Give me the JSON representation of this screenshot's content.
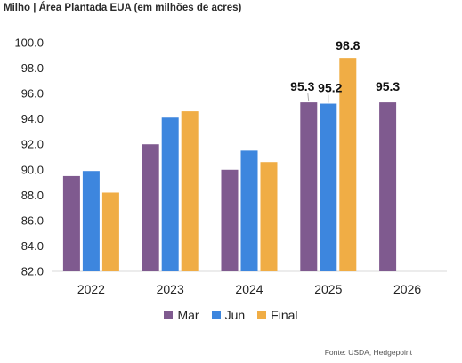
{
  "title": "Milho | Área Plantada EUA (em milhões de acres)",
  "source": "Fonte: USDA, Hedgepoint",
  "chart_data": {
    "type": "bar",
    "title": "Milho | Área Plantada EUA (em milhões de acres)",
    "categories": [
      "2022",
      "2023",
      "2024",
      "2025",
      "2026"
    ],
    "series": [
      {
        "name": "Mar",
        "color": "#7f5a8f",
        "values": [
          89.5,
          92.0,
          90.0,
          95.3,
          95.3
        ]
      },
      {
        "name": "Jun",
        "color": "#3d86de",
        "values": [
          89.9,
          94.1,
          91.5,
          95.2,
          null
        ]
      },
      {
        "name": "Final",
        "color": "#f0ad45",
        "values": [
          88.2,
          94.6,
          90.6,
          98.8,
          null
        ]
      }
    ],
    "data_labels": [
      {
        "series": "Mar",
        "category": "2025",
        "text": "95.3"
      },
      {
        "series": "Jun",
        "category": "2025",
        "text": "95.2"
      },
      {
        "series": "Final",
        "category": "2025",
        "text": "98.8"
      },
      {
        "series": "Mar",
        "category": "2026",
        "text": "95.3"
      }
    ],
    "ylim": [
      82.0,
      100.0
    ],
    "yticks": [
      "82.0",
      "84.0",
      "86.0",
      "88.0",
      "90.0",
      "92.0",
      "94.0",
      "96.0",
      "98.0",
      "100.0"
    ],
    "grid": false,
    "legend": "bottom"
  }
}
